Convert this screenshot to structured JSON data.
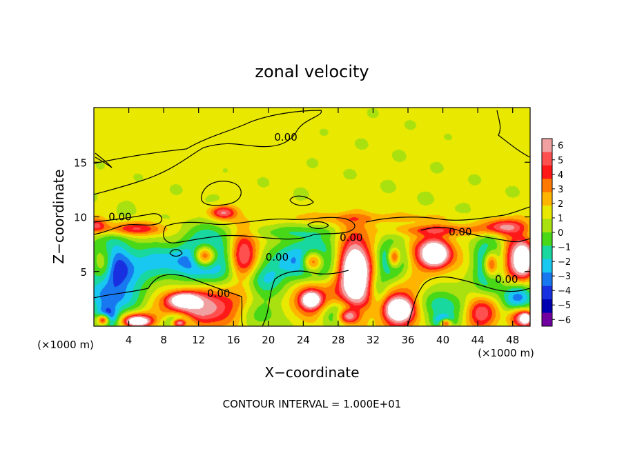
{
  "chart_data": {
    "type": "heatmap",
    "title": "zonal velocity",
    "xlabel": "X−coordinate",
    "ylabel": "Z−coordinate",
    "x_unit_left": "(×1000 m)",
    "x_unit_right": "(×1000 m)",
    "footer": "CONTOUR INTERVAL = 1.000E+01",
    "xlim": [
      0,
      50
    ],
    "ylim": [
      0,
      20
    ],
    "x_ticks": [
      4,
      8,
      12,
      16,
      20,
      24,
      28,
      32,
      36,
      40,
      44,
      48
    ],
    "y_ticks": [
      5,
      10,
      15
    ],
    "colorbar": {
      "ticks": [
        6,
        5,
        4,
        3,
        2,
        1,
        0,
        -1,
        -2,
        -3,
        -4,
        -5,
        -6
      ],
      "colors": [
        "#f0a0a0",
        "#ff5050",
        "#ff1818",
        "#ff7800",
        "#ffb400",
        "#e8e800",
        "#a8e010",
        "#48d818",
        "#18d8a0",
        "#18c8f0",
        "#1878f0",
        "#1830e0",
        "#0000b0",
        "#7000a0"
      ]
    },
    "contour_labels": [
      {
        "x": 22,
        "y": 17.3,
        "text": "0.00"
      },
      {
        "x": 3,
        "y": 10,
        "text": "0.00"
      },
      {
        "x": 21,
        "y": 6.3,
        "text": "0.00"
      },
      {
        "x": 29.5,
        "y": 8.1,
        "text": "0.00"
      },
      {
        "x": 42,
        "y": 8.6,
        "text": "0.00"
      },
      {
        "x": 47.3,
        "y": 4.3,
        "text": "0.00"
      },
      {
        "x": 14.3,
        "y": 3,
        "text": "0.00"
      }
    ],
    "features": [
      {
        "x": 1.3,
        "y": 5.3,
        "v": -8,
        "rx": 2.2,
        "ry": 2.4
      },
      {
        "x": 1.1,
        "y": 5.5,
        "v": 8,
        "rx": 1.4,
        "ry": 1.7
      },
      {
        "x": 4.5,
        "y": 8.9,
        "v": 4,
        "rx": 3.5,
        "ry": 0.6
      },
      {
        "x": 0.2,
        "y": 9.2,
        "v": 4,
        "rx": 1.2,
        "ry": 0.7
      },
      {
        "x": 3.6,
        "y": 5.0,
        "v": -2.5,
        "rx": 2.3,
        "ry": 2.0
      },
      {
        "x": 7.8,
        "y": 5.8,
        "v": -3.5,
        "rx": 3.2,
        "ry": 1.6
      },
      {
        "x": 1.5,
        "y": 0.8,
        "v": -6,
        "rx": 1.3,
        "ry": 1.0
      },
      {
        "x": 1.1,
        "y": 0.6,
        "v": 8,
        "rx": 0.7,
        "ry": 0.5
      },
      {
        "x": 5.0,
        "y": 0.7,
        "v": 4,
        "rx": 1.8,
        "ry": 0.6
      },
      {
        "x": 5.0,
        "y": 0.4,
        "v": 8,
        "rx": 1.3,
        "ry": 0.4
      },
      {
        "x": 2.9,
        "y": 2.5,
        "v": -3,
        "rx": 3.5,
        "ry": 1.3
      },
      {
        "x": 12.8,
        "y": 6.2,
        "v": -5.5,
        "rx": 3.0,
        "ry": 2.4
      },
      {
        "x": 12.7,
        "y": 6.4,
        "v": 8,
        "rx": 1.3,
        "ry": 1.0
      },
      {
        "x": 12.5,
        "y": 1.8,
        "v": 6,
        "rx": 4.5,
        "ry": 1.7
      },
      {
        "x": 10.3,
        "y": 2.4,
        "v": 8,
        "rx": 1.6,
        "ry": 0.6
      },
      {
        "x": 9.8,
        "y": 0.5,
        "v": -5,
        "rx": 1.5,
        "ry": 0.7
      },
      {
        "x": 9.8,
        "y": 0.3,
        "v": 8,
        "rx": 0.8,
        "ry": 0.4
      },
      {
        "x": 14.8,
        "y": 10.4,
        "v": 5,
        "rx": 1.5,
        "ry": 0.6
      },
      {
        "x": 17.1,
        "y": 6.6,
        "v": 6,
        "rx": 1.6,
        "ry": 2.3
      },
      {
        "x": 19.6,
        "y": 4.4,
        "v": -3,
        "rx": 2.3,
        "ry": 1.6
      },
      {
        "x": 19.0,
        "y": 1.3,
        "v": -2,
        "rx": 3.0,
        "ry": 1.5
      },
      {
        "x": 24.6,
        "y": 6.0,
        "v": -6,
        "rx": 3.4,
        "ry": 1.9
      },
      {
        "x": 25.1,
        "y": 5.9,
        "v": 8,
        "rx": 1.3,
        "ry": 1.0
      },
      {
        "x": 24.8,
        "y": 2.5,
        "v": 5,
        "rx": 2.0,
        "ry": 1.6
      },
      {
        "x": 24.9,
        "y": 2.4,
        "v": 8,
        "rx": 0.9,
        "ry": 0.6
      },
      {
        "x": 28.6,
        "y": 1.0,
        "v": -5,
        "rx": 2.3,
        "ry": 1.1
      },
      {
        "x": 29.1,
        "y": 0.9,
        "v": 8,
        "rx": 1.3,
        "ry": 0.7
      },
      {
        "x": 29.8,
        "y": 5.0,
        "v": 7,
        "rx": 2.3,
        "ry": 3.8
      },
      {
        "x": 30.0,
        "y": 4.7,
        "v": 8,
        "rx": 1.2,
        "ry": 2.0
      },
      {
        "x": 32.6,
        "y": 3.1,
        "v": -3,
        "rx": 1.2,
        "ry": 2.2
      },
      {
        "x": 34.2,
        "y": 6.2,
        "v": -6,
        "rx": 1.5,
        "ry": 1.8
      },
      {
        "x": 34.4,
        "y": 6.3,
        "v": 8,
        "rx": 0.8,
        "ry": 1.0
      },
      {
        "x": 34.8,
        "y": 1.6,
        "v": 5,
        "rx": 2.6,
        "ry": 2.1
      },
      {
        "x": 35.0,
        "y": 1.5,
        "v": 8,
        "rx": 1.3,
        "ry": 0.9
      },
      {
        "x": 39.0,
        "y": 6.7,
        "v": 6,
        "rx": 2.6,
        "ry": 1.7
      },
      {
        "x": 39.1,
        "y": 6.6,
        "v": 8,
        "rx": 1.2,
        "ry": 0.9
      },
      {
        "x": 40.0,
        "y": 1.8,
        "v": -3,
        "rx": 3.0,
        "ry": 1.6
      },
      {
        "x": 40.1,
        "y": 0.4,
        "v": -5,
        "rx": 1.2,
        "ry": 0.6
      },
      {
        "x": 40.3,
        "y": 0.3,
        "v": 8,
        "rx": 0.7,
        "ry": 0.4
      },
      {
        "x": 44.3,
        "y": 1.2,
        "v": 5,
        "rx": 1.8,
        "ry": 1.4
      },
      {
        "x": 45.4,
        "y": 5.7,
        "v": -6,
        "rx": 1.6,
        "ry": 2.3
      },
      {
        "x": 45.5,
        "y": 5.7,
        "v": 8,
        "rx": 0.9,
        "ry": 1.3
      },
      {
        "x": 48.4,
        "y": 6.0,
        "v": 5,
        "rx": 1.8,
        "ry": 2.2
      },
      {
        "x": 49.3,
        "y": 6.1,
        "v": 8,
        "rx": 1.0,
        "ry": 1.4
      },
      {
        "x": 48.6,
        "y": 2.6,
        "v": -5,
        "rx": 1.8,
        "ry": 1.5
      },
      {
        "x": 48.8,
        "y": 0.8,
        "v": 5,
        "rx": 1.3,
        "ry": 1.0
      },
      {
        "x": 49.5,
        "y": 0.7,
        "v": 8,
        "rx": 0.6,
        "ry": 0.5
      },
      {
        "x": 39.5,
        "y": 8.8,
        "v": 3,
        "rx": 5.0,
        "ry": 0.5
      },
      {
        "x": 47.0,
        "y": 9.1,
        "v": 5,
        "rx": 2.5,
        "ry": 0.7
      },
      {
        "x": 22.0,
        "y": 8.6,
        "v": -1.5,
        "rx": 6.0,
        "ry": 0.6
      },
      {
        "x": 30.0,
        "y": 9.9,
        "v": 1.5,
        "rx": 10.0,
        "ry": 0.5
      }
    ]
  }
}
